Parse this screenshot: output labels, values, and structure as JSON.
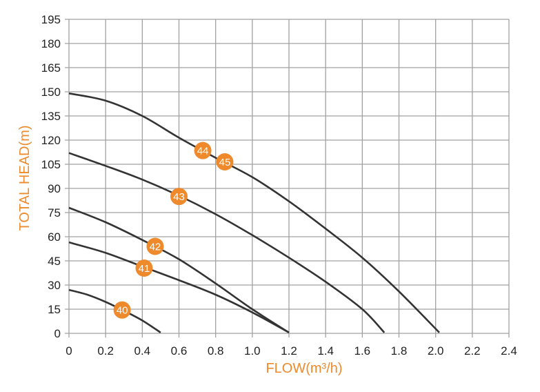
{
  "chart_data": {
    "type": "line",
    "xlabel": "FLOW(m³/h)",
    "ylabel": "TOTAL HEAD(m)",
    "xlim": [
      0,
      2.4
    ],
    "ylim": [
      0,
      195
    ],
    "x_ticks": [
      "0",
      "0.2",
      "0.4",
      "0.6",
      "0.8",
      "1.0",
      "1.2",
      "1.4",
      "1.6",
      "1.8",
      "2.0",
      "2.2",
      "2.4"
    ],
    "y_ticks": [
      "0",
      "15",
      "30",
      "45",
      "60",
      "75",
      "90",
      "105",
      "120",
      "135",
      "150",
      "165",
      "180",
      "195"
    ],
    "grid": true,
    "series": [
      {
        "name": "40",
        "label_at": [
          0.29,
          14.5
        ],
        "points": [
          [
            0,
            27
          ],
          [
            0.1,
            24
          ],
          [
            0.2,
            19.5
          ],
          [
            0.3,
            14
          ],
          [
            0.4,
            8
          ],
          [
            0.5,
            0.5
          ]
        ]
      },
      {
        "name": "41",
        "label_at": [
          0.41,
          40.5
        ],
        "points": [
          [
            0,
            56.5
          ],
          [
            0.2,
            50
          ],
          [
            0.4,
            41.5
          ],
          [
            0.6,
            33
          ],
          [
            0.8,
            24
          ],
          [
            1.0,
            13
          ],
          [
            1.2,
            0.5
          ]
        ]
      },
      {
        "name": "42",
        "label_at": [
          0.47,
          54
        ],
        "points": [
          [
            0,
            78
          ],
          [
            0.2,
            69
          ],
          [
            0.4,
            58
          ],
          [
            0.6,
            46
          ],
          [
            0.8,
            31
          ],
          [
            1.0,
            15
          ],
          [
            1.2,
            0.5
          ]
        ]
      },
      {
        "name": "43",
        "label_at": [
          0.6,
          85
        ],
        "points": [
          [
            0,
            112
          ],
          [
            0.2,
            104
          ],
          [
            0.4,
            95.5
          ],
          [
            0.6,
            85.5
          ],
          [
            0.8,
            74
          ],
          [
            1.0,
            61
          ],
          [
            1.2,
            47
          ],
          [
            1.4,
            32
          ],
          [
            1.6,
            15
          ],
          [
            1.72,
            0.5
          ]
        ]
      },
      {
        "name": "44",
        "label_at": [
          0.73,
          113.5
        ],
        "points": [
          [
            0,
            149
          ],
          [
            0.2,
            144.5
          ],
          [
            0.4,
            135
          ],
          [
            0.6,
            121.5
          ],
          [
            0.8,
            109
          ],
          [
            1.0,
            97
          ],
          [
            1.2,
            82
          ],
          [
            1.4,
            65
          ],
          [
            1.6,
            47
          ],
          [
            1.8,
            26
          ],
          [
            2.02,
            0.5
          ]
        ]
      },
      {
        "name": "45",
        "label_at": [
          0.85,
          106.5
        ],
        "points": []
      }
    ],
    "colors": {
      "line": "#333333",
      "badge": "#ee8a2c",
      "grid": "#a0a0a0",
      "axis_title": "#ee8a2c"
    }
  }
}
